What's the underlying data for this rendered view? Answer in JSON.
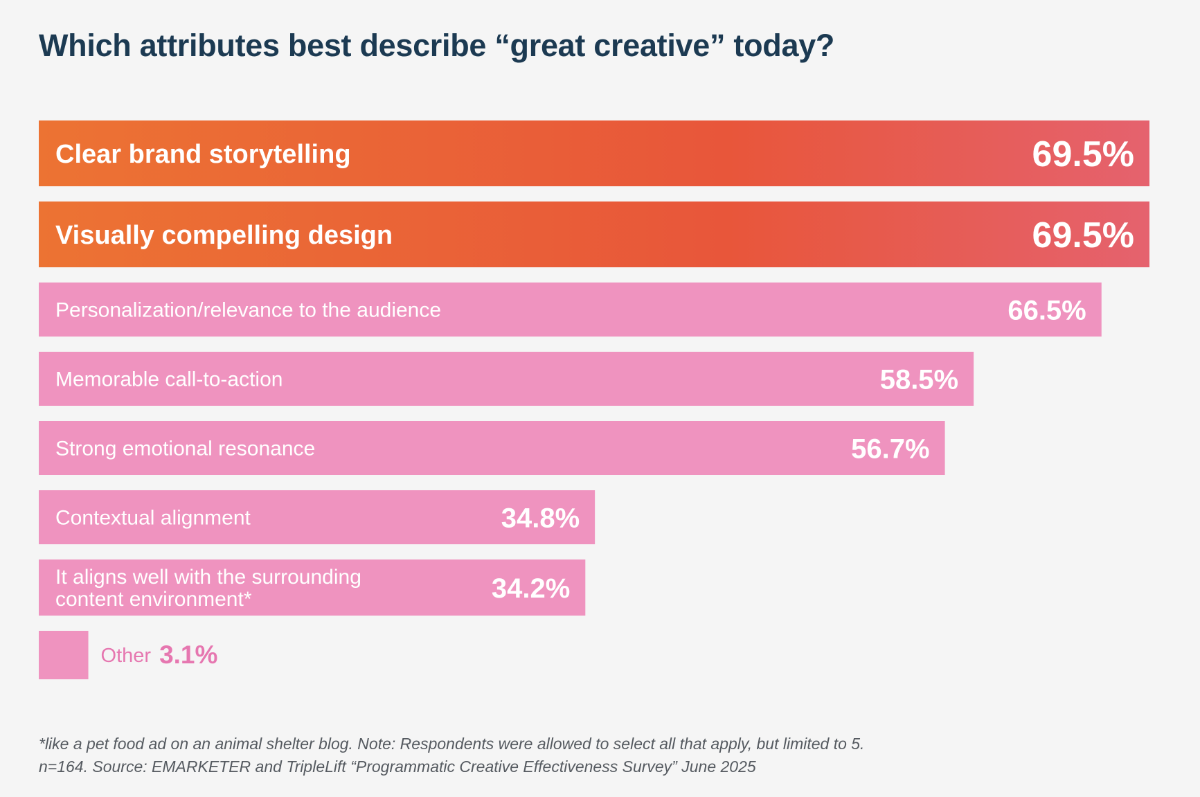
{
  "title": "Which attributes best describe “great creative” today?",
  "chart_data": {
    "type": "bar",
    "orientation": "horizontal",
    "categories": [
      "Clear brand storytelling",
      "Visually compelling design",
      "Personalization/relevance to the audience",
      "Memorable call-to-action",
      "Strong emotional resonance",
      "Contextual alignment",
      "It aligns well with the surrounding content environment*",
      "Other"
    ],
    "values": [
      69.5,
      69.5,
      66.5,
      58.5,
      56.7,
      34.8,
      34.2,
      3.1
    ],
    "value_labels": [
      "69.5%",
      "69.5%",
      "66.5%",
      "58.5%",
      "56.7%",
      "34.8%",
      "34.2%",
      "3.1%"
    ],
    "label_lines": [
      [
        "Clear brand storytelling"
      ],
      [
        "Visually compelling design"
      ],
      [
        "Personalization/relevance to the audience"
      ],
      [
        "Memorable call-to-action"
      ],
      [
        "Strong emotional resonance"
      ],
      [
        "Contextual alignment"
      ],
      [
        "It aligns well with the surrounding",
        "content environment*"
      ],
      [
        "Other"
      ]
    ],
    "highlight_top": 2,
    "colors": {
      "highlight_gradient": [
        "#ec7333",
        "#e8563a",
        "#e5626e"
      ],
      "bar": "#ef93bf",
      "outside_label": "#e677b0",
      "bar_text": "#ffffff"
    }
  },
  "footnote": [
    "*like a pet food ad on an animal shelter blog. Note: Respondents were allowed to select all that apply, but limited to 5.",
    "n=164. Source: EMARKETER and TripleLift “Programmatic Creative Effectiveness Survey” June 2025"
  ]
}
